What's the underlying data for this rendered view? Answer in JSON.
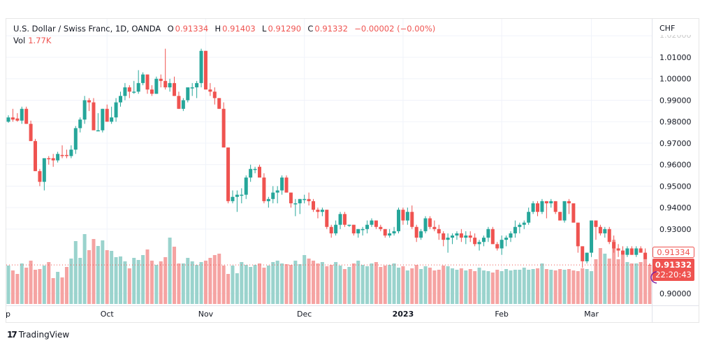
{
  "header": {
    "symbol": "U.S. Dollar / Swiss Franc, 1D, OANDA",
    "open_label": "O",
    "open": "0.91334",
    "high_label": "H",
    "high": "0.91403",
    "low_label": "L",
    "low": "0.91290",
    "close_label": "C",
    "close": "0.91332",
    "change": "−0.00002 (−0.00%)"
  },
  "volume": {
    "label": "Vol",
    "value": "1.77K"
  },
  "currency": "CHF",
  "price_badges": {
    "open_marker": "0.91334",
    "last_price": "0.91332",
    "countdown": "22:20:43"
  },
  "footer": {
    "brand": "TradingView",
    "logo": "17"
  },
  "colors": {
    "up": "#26a69a",
    "down": "#ef5350",
    "vol_up": "#9ad3cd",
    "vol_down": "#f5a3a2",
    "grid": "#f0f3fa",
    "last_price_line": "#ef5350"
  },
  "chart_data": {
    "type": "candlestick",
    "title": "U.S. Dollar / Swiss Franc, 1D, OANDA",
    "ylabel": "CHF",
    "ylim": [
      0.895,
      1.02
    ],
    "y_ticks": [
      "1.02000",
      "1.01000",
      "1.00000",
      "0.99000",
      "0.98000",
      "0.97000",
      "0.96000",
      "0.95000",
      "0.94000",
      "0.93000",
      "0.90000"
    ],
    "x_ticks": [
      {
        "label": "Sep",
        "index": 0
      },
      {
        "label": "Oct",
        "index": 22
      },
      {
        "label": "Nov",
        "index": 44
      },
      {
        "label": "Dec",
        "index": 66
      },
      {
        "label": "2023",
        "index": 88
      },
      {
        "label": "Feb",
        "index": 110
      },
      {
        "label": "Mar",
        "index": 130
      }
    ],
    "grid": true,
    "last_price": 0.91332,
    "candles_ohlc": [
      [
        0.98,
        0.983,
        0.9795,
        0.982
      ],
      [
        0.982,
        0.986,
        0.98,
        0.981
      ],
      [
        0.9815,
        0.984,
        0.98,
        0.9805
      ],
      [
        0.9805,
        0.987,
        0.979,
        0.986
      ],
      [
        0.986,
        0.987,
        0.979,
        0.979
      ],
      [
        0.979,
        0.9805,
        0.971,
        0.971
      ],
      [
        0.971,
        0.972,
        0.957,
        0.957
      ],
      [
        0.957,
        0.958,
        0.95,
        0.952
      ],
      [
        0.952,
        0.963,
        0.948,
        0.963
      ],
      [
        0.963,
        0.964,
        0.96,
        0.9625
      ],
      [
        0.963,
        0.965,
        0.959,
        0.962
      ],
      [
        0.962,
        0.966,
        0.961,
        0.965
      ],
      [
        0.9645,
        0.969,
        0.963,
        0.964
      ],
      [
        0.9645,
        0.967,
        0.963,
        0.964
      ],
      [
        0.964,
        0.969,
        0.963,
        0.967
      ],
      [
        0.967,
        0.978,
        0.965,
        0.977
      ],
      [
        0.977,
        0.982,
        0.975,
        0.981
      ],
      [
        0.981,
        0.992,
        0.979,
        0.99
      ],
      [
        0.99,
        0.991,
        0.985,
        0.989
      ],
      [
        0.989,
        0.991,
        0.976,
        0.976
      ],
      [
        0.976,
        0.984,
        0.976,
        0.976
      ],
      [
        0.976,
        0.986,
        0.975,
        0.986
      ],
      [
        0.986,
        0.988,
        0.98,
        0.98
      ],
      [
        0.98,
        0.987,
        0.979,
        0.982
      ],
      [
        0.982,
        0.991,
        0.98,
        0.989
      ],
      [
        0.989,
        0.994,
        0.987,
        0.992
      ],
      [
        0.992,
        0.998,
        0.99,
        0.996
      ],
      [
        0.996,
        0.997,
        0.991,
        0.994
      ],
      [
        0.994,
        0.999,
        0.993,
        0.994
      ],
      [
        0.994,
        1.004,
        0.993,
        0.998
      ],
      [
        0.998,
        1.003,
        0.997,
        1.002
      ],
      [
        1.002,
        1.002,
        0.993,
        0.995
      ],
      [
        0.995,
        0.997,
        0.992,
        0.993
      ],
      [
        0.993,
        1.001,
        0.993,
        1.0
      ],
      [
        1.0,
        1.002,
        0.996,
        0.999
      ],
      [
        0.999,
        1.014,
        0.995,
        0.996
      ],
      [
        0.996,
        1.0,
        0.994,
        0.998
      ],
      [
        0.998,
        1.001,
        0.992,
        0.992
      ],
      [
        0.992,
        0.994,
        0.986,
        0.986
      ],
      [
        0.986,
        0.991,
        0.985,
        0.99
      ],
      [
        0.99,
        0.995,
        0.989,
        0.996
      ],
      [
        0.996,
        0.998,
        0.992,
        0.996
      ],
      [
        0.996,
        0.999,
        0.991,
        0.998
      ],
      [
        0.998,
        1.014,
        0.996,
        1.013
      ],
      [
        1.013,
        1.013,
        0.995,
        0.995
      ],
      [
        0.995,
        0.998,
        0.992,
        0.994
      ],
      [
        0.994,
        0.996,
        0.988,
        0.991
      ],
      [
        0.991,
        0.991,
        0.986,
        0.986
      ],
      [
        0.986,
        0.989,
        0.968,
        0.968
      ],
      [
        0.968,
        0.968,
        0.942,
        0.943
      ],
      [
        0.943,
        0.948,
        0.942,
        0.945
      ],
      [
        0.945,
        0.948,
        0.938,
        0.946
      ],
      [
        0.946,
        0.949,
        0.942,
        0.946
      ],
      [
        0.946,
        0.955,
        0.944,
        0.954
      ],
      [
        0.954,
        0.96,
        0.952,
        0.958
      ],
      [
        0.958,
        0.959,
        0.956,
        0.958
      ],
      [
        0.959,
        0.96,
        0.954,
        0.954
      ],
      [
        0.954,
        0.956,
        0.942,
        0.943
      ],
      [
        0.943,
        0.945,
        0.94,
        0.944
      ],
      [
        0.944,
        0.95,
        0.942,
        0.947
      ],
      [
        0.947,
        0.95,
        0.942,
        0.948
      ],
      [
        0.948,
        0.955,
        0.946,
        0.954
      ],
      [
        0.954,
        0.955,
        0.947,
        0.947
      ],
      [
        0.947,
        0.947,
        0.94,
        0.942
      ],
      [
        0.942,
        0.944,
        0.936,
        0.942
      ],
      [
        0.942,
        0.944,
        0.937,
        0.944
      ],
      [
        0.944,
        0.946,
        0.942,
        0.944
      ],
      [
        0.944,
        0.947,
        0.941,
        0.943
      ],
      [
        0.943,
        0.944,
        0.938,
        0.939
      ],
      [
        0.939,
        0.94,
        0.935,
        0.938
      ],
      [
        0.938,
        0.94,
        0.936,
        0.939
      ],
      [
        0.939,
        0.939,
        0.93,
        0.931
      ],
      [
        0.931,
        0.932,
        0.926,
        0.928
      ],
      [
        0.928,
        0.934,
        0.927,
        0.932
      ],
      [
        0.932,
        0.938,
        0.93,
        0.937
      ],
      [
        0.937,
        0.938,
        0.931,
        0.932
      ],
      [
        0.932,
        0.932,
        0.931,
        0.932
      ],
      [
        0.932,
        0.932,
        0.927,
        0.928
      ],
      [
        0.928,
        0.93,
        0.926,
        0.93
      ],
      [
        0.93,
        0.931,
        0.927,
        0.93
      ],
      [
        0.93,
        0.934,
        0.928,
        0.932
      ],
      [
        0.932,
        0.935,
        0.931,
        0.934
      ],
      [
        0.934,
        0.934,
        0.93,
        0.931
      ],
      [
        0.931,
        0.932,
        0.929,
        0.93
      ],
      [
        0.93,
        0.93,
        0.926,
        0.927
      ],
      [
        0.927,
        0.93,
        0.926,
        0.928
      ],
      [
        0.928,
        0.931,
        0.927,
        0.929
      ],
      [
        0.929,
        0.94,
        0.928,
        0.939
      ],
      [
        0.939,
        0.94,
        0.932,
        0.934
      ],
      [
        0.934,
        0.94,
        0.932,
        0.938
      ],
      [
        0.938,
        0.941,
        0.93,
        0.931
      ],
      [
        0.931,
        0.932,
        0.924,
        0.926
      ],
      [
        0.926,
        0.93,
        0.925,
        0.929
      ],
      [
        0.929,
        0.936,
        0.928,
        0.935
      ],
      [
        0.935,
        0.936,
        0.93,
        0.931
      ],
      [
        0.931,
        0.934,
        0.929,
        0.93
      ],
      [
        0.93,
        0.932,
        0.925,
        0.928
      ],
      [
        0.928,
        0.929,
        0.922,
        0.925
      ],
      [
        0.925,
        0.928,
        0.919,
        0.926
      ],
      [
        0.926,
        0.928,
        0.923,
        0.927
      ],
      [
        0.927,
        0.929,
        0.925,
        0.928
      ],
      [
        0.928,
        0.93,
        0.924,
        0.926
      ],
      [
        0.926,
        0.929,
        0.923,
        0.927
      ],
      [
        0.927,
        0.929,
        0.924,
        0.926
      ],
      [
        0.926,
        0.928,
        0.922,
        0.923
      ],
      [
        0.923,
        0.925,
        0.92,
        0.924
      ],
      [
        0.924,
        0.927,
        0.922,
        0.926
      ],
      [
        0.926,
        0.931,
        0.924,
        0.93
      ],
      [
        0.93,
        0.931,
        0.923,
        0.923
      ],
      [
        0.923,
        0.924,
        0.92,
        0.921
      ],
      [
        0.921,
        0.927,
        0.918,
        0.925
      ],
      [
        0.925,
        0.927,
        0.922,
        0.926
      ],
      [
        0.926,
        0.929,
        0.924,
        0.928
      ],
      [
        0.928,
        0.934,
        0.926,
        0.931
      ],
      [
        0.931,
        0.933,
        0.928,
        0.932
      ],
      [
        0.932,
        0.934,
        0.93,
        0.933
      ],
      [
        0.933,
        0.94,
        0.932,
        0.938
      ],
      [
        0.938,
        0.943,
        0.937,
        0.942
      ],
      [
        0.942,
        0.943,
        0.936,
        0.938
      ],
      [
        0.938,
        0.944,
        0.937,
        0.943
      ],
      [
        0.943,
        0.943,
        0.935,
        0.942
      ],
      [
        0.942,
        0.944,
        0.94,
        0.943
      ],
      [
        0.943,
        0.943,
        0.937,
        0.938
      ],
      [
        0.938,
        0.938,
        0.934,
        0.934
      ],
      [
        0.934,
        0.943,
        0.933,
        0.943
      ],
      [
        0.943,
        0.944,
        0.937,
        0.942
      ],
      [
        0.942,
        0.942,
        0.933,
        0.933
      ],
      [
        0.933,
        0.933,
        0.919,
        0.922
      ],
      [
        0.922,
        0.922,
        0.912,
        0.915
      ],
      [
        0.915,
        0.919,
        0.914,
        0.919
      ],
      [
        0.919,
        0.934,
        0.917,
        0.934
      ],
      [
        0.934,
        0.934,
        0.925,
        0.931
      ],
      [
        0.931,
        0.932,
        0.927,
        0.928
      ],
      [
        0.928,
        0.931,
        0.926,
        0.93
      ],
      [
        0.93,
        0.931,
        0.923,
        0.924
      ],
      [
        0.924,
        0.927,
        0.919,
        0.921
      ],
      [
        0.921,
        0.923,
        0.917,
        0.92
      ],
      [
        0.92,
        0.922,
        0.918,
        0.918
      ],
      [
        0.918,
        0.922,
        0.917,
        0.921
      ],
      [
        0.921,
        0.922,
        0.918,
        0.918
      ],
      [
        0.918,
        0.922,
        0.917,
        0.921
      ],
      [
        0.921,
        0.922,
        0.919,
        0.919
      ],
      [
        0.919,
        0.921,
        0.916,
        0.916
      ],
      [
        0.91334,
        0.91403,
        0.9129,
        0.91332
      ]
    ],
    "volumes_relative": [
      0.55,
      0.48,
      0.43,
      0.58,
      0.52,
      0.62,
      0.49,
      0.5,
      0.55,
      0.6,
      0.37,
      0.46,
      0.38,
      0.53,
      0.65,
      0.9,
      0.66,
      1.0,
      0.77,
      0.93,
      0.83,
      0.91,
      0.77,
      0.76,
      0.67,
      0.68,
      0.61,
      0.51,
      0.66,
      0.63,
      0.7,
      0.78,
      0.62,
      0.56,
      0.61,
      0.67,
      0.95,
      0.82,
      0.58,
      0.58,
      0.66,
      0.61,
      0.56,
      0.6,
      0.62,
      0.66,
      0.7,
      0.72,
      0.55,
      0.43,
      0.55,
      0.44,
      0.6,
      0.56,
      0.53,
      0.56,
      0.58,
      0.52,
      0.55,
      0.6,
      0.62,
      0.58,
      0.57,
      0.56,
      0.62,
      0.57,
      0.7,
      0.65,
      0.62,
      0.58,
      0.6,
      0.54,
      0.56,
      0.6,
      0.55,
      0.5,
      0.53,
      0.58,
      0.62,
      0.56,
      0.54,
      0.58,
      0.6,
      0.53,
      0.55,
      0.56,
      0.58,
      0.52,
      0.54,
      0.48,
      0.51,
      0.56,
      0.5,
      0.54,
      0.52,
      0.48,
      0.49,
      0.55,
      0.54,
      0.51,
      0.49,
      0.51,
      0.48,
      0.5,
      0.47,
      0.52,
      0.48,
      0.47,
      0.45,
      0.49,
      0.47,
      0.5,
      0.48,
      0.49,
      0.49,
      0.52,
      0.49,
      0.5,
      0.51,
      0.58,
      0.5,
      0.49,
      0.48,
      0.5,
      0.49,
      0.5,
      0.48,
      0.47,
      0.51,
      0.5,
      0.47,
      0.64,
      0.8,
      0.72,
      0.65,
      0.92,
      0.64,
      0.7,
      0.6,
      0.58,
      0.58,
      0.6,
      0.65,
      0.54,
      0.52,
      0.47,
      0.45,
      0.42,
      0.4
    ]
  }
}
